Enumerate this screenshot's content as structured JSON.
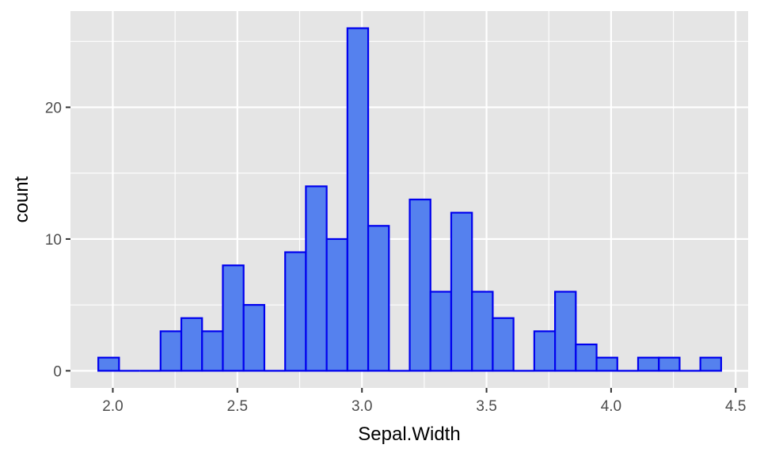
{
  "chart_data": {
    "type": "bar",
    "title": "",
    "xlabel": "Sepal.Width",
    "ylabel": "count",
    "bin_width": 0.0833,
    "bins": [
      {
        "x0": 1.9417,
        "x1": 2.025,
        "count": 1
      },
      {
        "x0": 2.025,
        "x1": 2.1083,
        "count": 0
      },
      {
        "x0": 2.1083,
        "x1": 2.1917,
        "count": 0
      },
      {
        "x0": 2.1917,
        "x1": 2.275,
        "count": 3
      },
      {
        "x0": 2.275,
        "x1": 2.3583,
        "count": 4
      },
      {
        "x0": 2.3583,
        "x1": 2.4417,
        "count": 3
      },
      {
        "x0": 2.4417,
        "x1": 2.525,
        "count": 8
      },
      {
        "x0": 2.525,
        "x1": 2.6083,
        "count": 5
      },
      {
        "x0": 2.6083,
        "x1": 2.6917,
        "count": 0
      },
      {
        "x0": 2.6917,
        "x1": 2.775,
        "count": 9
      },
      {
        "x0": 2.775,
        "x1": 2.8583,
        "count": 14
      },
      {
        "x0": 2.8583,
        "x1": 2.9417,
        "count": 10
      },
      {
        "x0": 2.9417,
        "x1": 3.025,
        "count": 26
      },
      {
        "x0": 3.025,
        "x1": 3.1083,
        "count": 11
      },
      {
        "x0": 3.1083,
        "x1": 3.1917,
        "count": 0
      },
      {
        "x0": 3.1917,
        "x1": 3.275,
        "count": 13
      },
      {
        "x0": 3.275,
        "x1": 3.3583,
        "count": 6
      },
      {
        "x0": 3.3583,
        "x1": 3.4417,
        "count": 12
      },
      {
        "x0": 3.4417,
        "x1": 3.525,
        "count": 6
      },
      {
        "x0": 3.525,
        "x1": 3.6083,
        "count": 4
      },
      {
        "x0": 3.6083,
        "x1": 3.6917,
        "count": 0
      },
      {
        "x0": 3.6917,
        "x1": 3.775,
        "count": 3
      },
      {
        "x0": 3.775,
        "x1": 3.8583,
        "count": 6
      },
      {
        "x0": 3.8583,
        "x1": 3.9417,
        "count": 2
      },
      {
        "x0": 3.9417,
        "x1": 4.025,
        "count": 1
      },
      {
        "x0": 4.025,
        "x1": 4.1083,
        "count": 0
      },
      {
        "x0": 4.1083,
        "x1": 4.1917,
        "count": 1
      },
      {
        "x0": 4.1917,
        "x1": 4.275,
        "count": 1
      },
      {
        "x0": 4.275,
        "x1": 4.3583,
        "count": 0
      },
      {
        "x0": 4.3583,
        "x1": 4.4417,
        "count": 1
      }
    ],
    "xlim": [
      1.83,
      4.55
    ],
    "ylim": [
      -1.3,
      27.3
    ],
    "x_ticks": [
      2.0,
      2.5,
      3.0,
      3.5,
      4.0,
      4.5
    ],
    "x_tick_labels": [
      "2.0",
      "2.5",
      "3.0",
      "3.5",
      "4.0",
      "4.5"
    ],
    "x_minor_ticks": [
      2.25,
      2.75,
      3.25,
      3.75,
      4.25
    ],
    "y_ticks": [
      0,
      10,
      20
    ],
    "y_tick_labels": [
      "0",
      "10",
      "20"
    ],
    "y_minor_ticks": [
      5,
      15,
      25
    ],
    "grid": true,
    "colors": {
      "panel_bg": "#e5e5e5",
      "grid": "#ffffff",
      "bar_fill": "#5581ee",
      "bar_stroke": "#0000ee",
      "tick_label": "#4d4d4d",
      "axis_title": "#000000",
      "tick_mark": "#333333"
    }
  }
}
